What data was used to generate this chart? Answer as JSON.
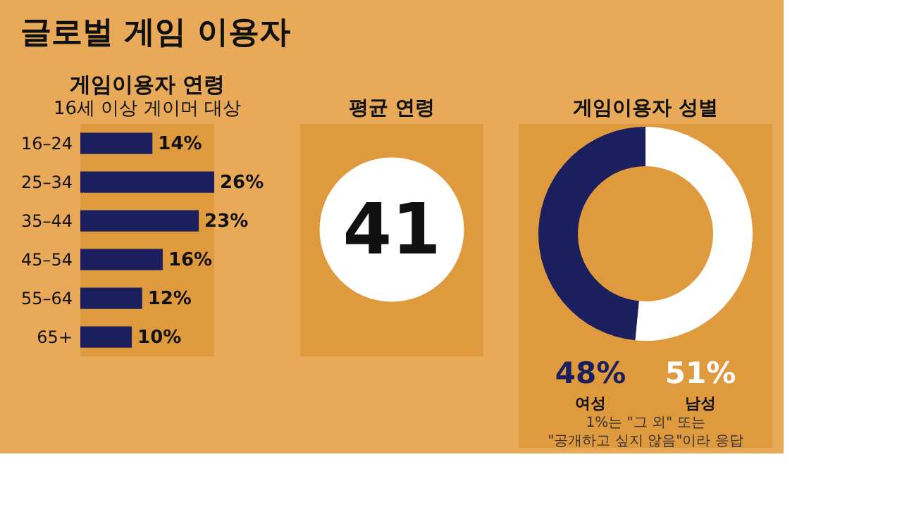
{
  "chart_data": [
    {
      "type": "other",
      "title": "글로벌 게임 이용자"
    },
    {
      "type": "bar",
      "orientation": "horizontal",
      "title": "게임이용자 연령",
      "subtitle": "16세 이상 게이머 대상",
      "categories": [
        "16–24",
        "25–34",
        "35–44",
        "45–54",
        "55–64",
        "65+"
      ],
      "values": [
        14,
        26,
        23,
        16,
        12,
        10
      ],
      "value_labels": [
        "14%",
        "26%",
        "23%",
        "16%",
        "12%",
        "10%"
      ],
      "color": "#1b1f5e"
    },
    {
      "type": "other",
      "title": "평균 연령",
      "annotations": [
        "41"
      ]
    },
    {
      "type": "donut",
      "title": "게임이용자 성별",
      "categories": [
        "여성",
        "남성"
      ],
      "values": [
        48,
        51
      ],
      "value_labels": [
        "48%",
        "51%"
      ],
      "colors": [
        "#1b1f5e",
        "#ffffff"
      ],
      "annotations": [
        "1%는 \"그 외\" 또는 \"공개하고 싶지 않음\"이라 응답"
      ]
    }
  ]
}
